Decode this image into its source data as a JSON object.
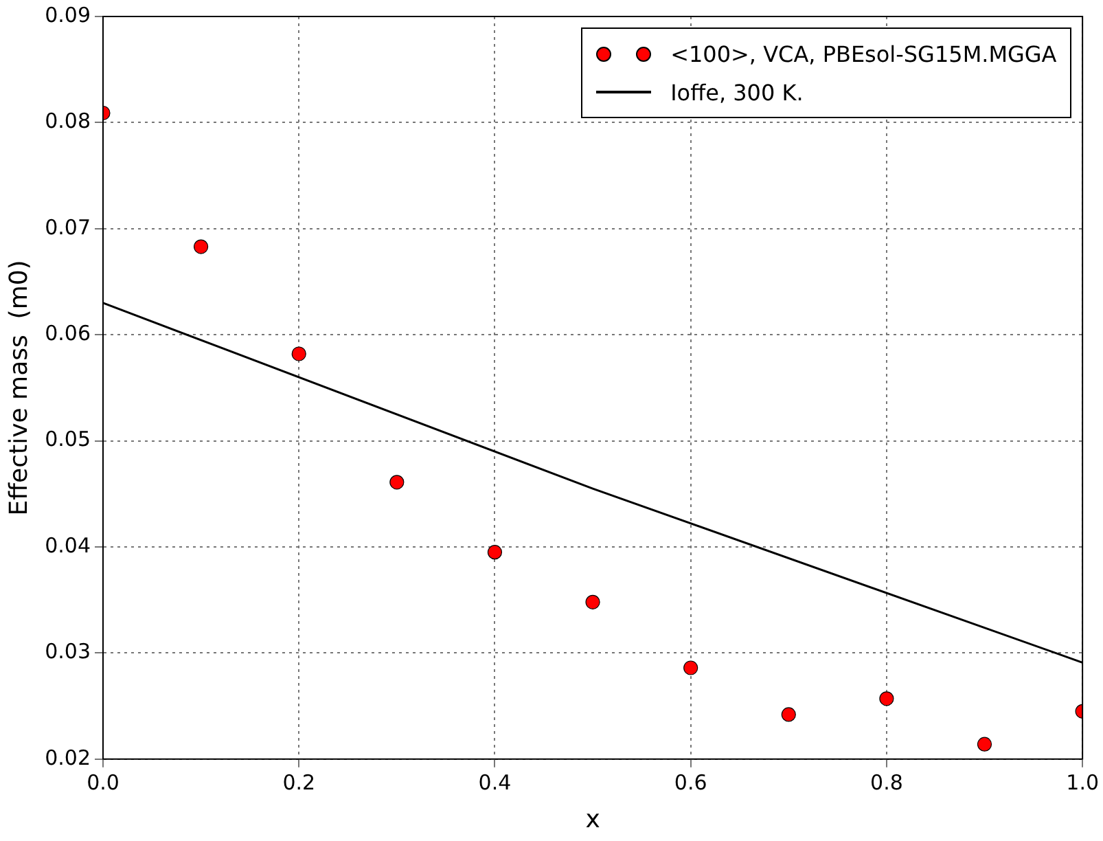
{
  "chart_data": {
    "type": "scatter",
    "xlabel": "x",
    "ylabel": "Effective mass  (m0)",
    "xlim": [
      0,
      1
    ],
    "xticks": [
      {
        "value": 0,
        "label": "0.0"
      },
      {
        "value": 0.2,
        "label": "0.2"
      },
      {
        "value": 0.4,
        "label": "0.4"
      },
      {
        "value": 0.6,
        "label": "0.6"
      },
      {
        "value": 0.8,
        "label": "0.8"
      },
      {
        "value": 1,
        "label": "1.0"
      }
    ],
    "ylim": [
      0.02,
      0.09
    ],
    "yticks": [
      {
        "value": 0.02,
        "label": "0.02"
      },
      {
        "value": 0.03,
        "label": "0.03"
      },
      {
        "value": 0.04,
        "label": "0.04"
      },
      {
        "value": 0.05,
        "label": "0.05"
      },
      {
        "value": 0.06,
        "label": "0.06"
      },
      {
        "value": 0.07,
        "label": "0.07"
      },
      {
        "value": 0.08,
        "label": "0.08"
      },
      {
        "value": 0.09,
        "label": "0.09"
      }
    ],
    "grid": true,
    "legend": "top right",
    "series": [
      {
        "name": "<100>, VCA, PBEsol-SG15M.MGGA",
        "marker": "circle",
        "color": "#ff0000",
        "x": [
          0,
          0.1,
          0.2,
          0.3,
          0.4,
          0.5,
          0.6,
          0.7,
          0.8,
          0.9,
          1.0
        ],
        "values": [
          0.0809,
          0.0683,
          0.0582,
          0.0461,
          0.0395,
          0.0348,
          0.0286,
          0.0242,
          0.0257,
          0.0214,
          0.0245
        ]
      },
      {
        "name": "Ioffe, 300 K.",
        "type": "line",
        "marker": "none",
        "color": "#000000",
        "x": [
          0,
          0.5,
          1
        ],
        "values": [
          0.063,
          0.0455,
          0.0291
        ]
      }
    ]
  }
}
